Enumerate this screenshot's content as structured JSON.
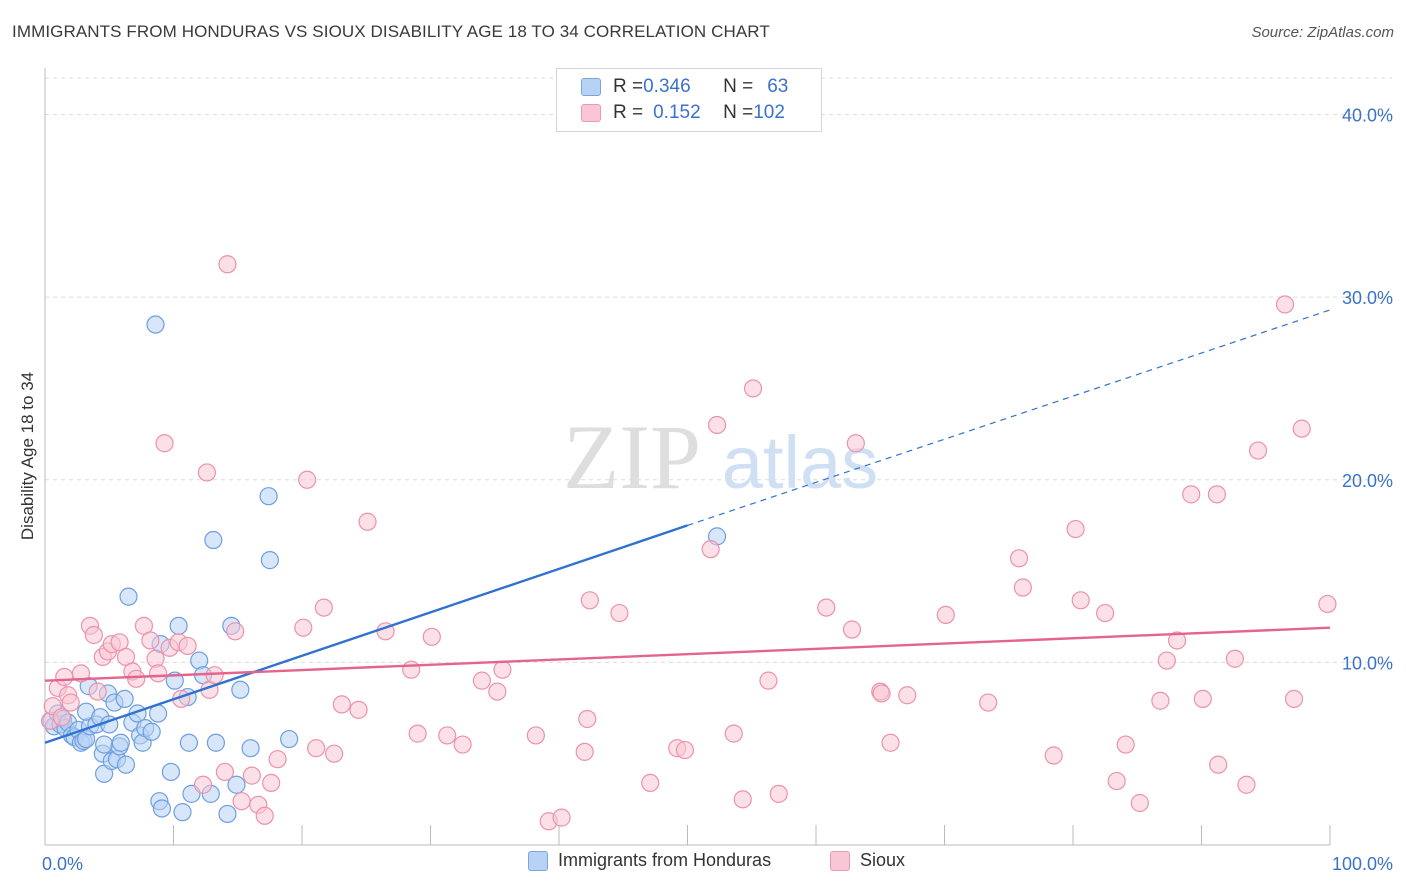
{
  "title": "IMMIGRANTS FROM HONDURAS VS SIOUX DISABILITY AGE 18 TO 34 CORRELATION CHART",
  "source": "Source: ZipAtlas.com",
  "watermark": {
    "zip": "ZIP",
    "atlas": "atlas"
  },
  "legend": {
    "rows": [
      {
        "r_label": "R = ",
        "r_value": "0.346",
        "n_label": "N = ",
        "n_value": "63",
        "color": "#b8d2f4",
        "border": "#7aa7e0"
      },
      {
        "r_label": "R = ",
        "r_value": "0.152",
        "n_label": "N = ",
        "n_value": "102",
        "color": "#f8c6d4",
        "border": "#ec9ab2"
      }
    ]
  },
  "bottom_legend": {
    "honduras": "Immigrants from Honduras",
    "sioux": "Sioux"
  },
  "colors": {
    "honduras_fill": "#b8d2f4",
    "honduras_stroke": "#6d9fe0",
    "honduras_line": "#2f72d0",
    "sioux_fill": "#f8c6d4",
    "sioux_stroke": "#ec92ad",
    "sioux_line": "#e4648d",
    "tick_label": "#3b72c9",
    "grid": "#dcdcdc"
  },
  "chart_data": {
    "type": "scatter",
    "xlabel": "",
    "ylabel": "Disability Age 18 to 34",
    "xlim": [
      0,
      100
    ],
    "ylim": [
      0,
      42
    ],
    "x_ticks": [
      {
        "value": 0,
        "label": "0.0%"
      },
      {
        "value": 100,
        "label": "100.0%"
      }
    ],
    "y_ticks": [
      {
        "value": 10,
        "label": "10.0%"
      },
      {
        "value": 20,
        "label": "20.0%"
      },
      {
        "value": 30,
        "label": "30.0%"
      },
      {
        "value": 40,
        "label": "40.0%"
      }
    ],
    "grid": true,
    "series": [
      {
        "name": "Immigrants from Honduras",
        "color_key": "honduras",
        "trend": {
          "x0": 0,
          "y0": 5.6,
          "x1": 50,
          "y1": 17.5,
          "dash_x1": 100,
          "dash_y1": 29.3
        },
        "points": [
          [
            0.5,
            6.8
          ],
          [
            0.7,
            6.5
          ],
          [
            1.0,
            7.2
          ],
          [
            1.2,
            6.6
          ],
          [
            1.4,
            6.9
          ],
          [
            1.6,
            6.4
          ],
          [
            1.8,
            6.7
          ],
          [
            2.1,
            6.0
          ],
          [
            2.3,
            5.9
          ],
          [
            2.6,
            6.3
          ],
          [
            2.8,
            5.6
          ],
          [
            3.0,
            5.7
          ],
          [
            3.2,
            5.8
          ],
          [
            3.5,
            6.5
          ],
          [
            3.2,
            7.3
          ],
          [
            3.4,
            8.7
          ],
          [
            4.0,
            6.6
          ],
          [
            4.3,
            7.0
          ],
          [
            4.5,
            5.0
          ],
          [
            4.6,
            5.5
          ],
          [
            4.6,
            3.9
          ],
          [
            4.9,
            8.3
          ],
          [
            5.0,
            6.6
          ],
          [
            5.2,
            4.6
          ],
          [
            5.4,
            7.8
          ],
          [
            5.6,
            4.7
          ],
          [
            5.8,
            5.4
          ],
          [
            5.9,
            5.6
          ],
          [
            6.2,
            8.0
          ],
          [
            6.3,
            4.4
          ],
          [
            6.5,
            13.6
          ],
          [
            6.8,
            6.7
          ],
          [
            7.2,
            7.2
          ],
          [
            7.4,
            6.0
          ],
          [
            7.6,
            5.6
          ],
          [
            7.8,
            6.4
          ],
          [
            8.3,
            6.2
          ],
          [
            8.6,
            28.5
          ],
          [
            8.8,
            7.2
          ],
          [
            8.9,
            2.4
          ],
          [
            9.1,
            2.0
          ],
          [
            9.8,
            4.0
          ],
          [
            10.1,
            9.0
          ],
          [
            10.4,
            12.0
          ],
          [
            10.7,
            1.8
          ],
          [
            11.1,
            8.1
          ],
          [
            11.2,
            5.6
          ],
          [
            11.4,
            2.8
          ],
          [
            12.0,
            10.1
          ],
          [
            12.3,
            9.3
          ],
          [
            12.9,
            2.8
          ],
          [
            13.1,
            16.7
          ],
          [
            13.3,
            5.6
          ],
          [
            14.2,
            1.7
          ],
          [
            14.5,
            12.0
          ],
          [
            14.9,
            3.3
          ],
          [
            15.2,
            8.5
          ],
          [
            16.0,
            5.3
          ],
          [
            17.4,
            19.1
          ],
          [
            17.5,
            15.6
          ],
          [
            19.0,
            5.8
          ],
          [
            9.0,
            11.0
          ],
          [
            52.3,
            16.9
          ]
        ]
      },
      {
        "name": "Sioux",
        "color_key": "sioux",
        "trend": {
          "x0": 0,
          "y0": 9.0,
          "x1": 100,
          "y1": 11.9
        },
        "points": [
          [
            0.4,
            6.8
          ],
          [
            0.6,
            7.6
          ],
          [
            1.0,
            8.6
          ],
          [
            1.3,
            7.0
          ],
          [
            1.5,
            9.2
          ],
          [
            1.8,
            8.2
          ],
          [
            2.0,
            7.8
          ],
          [
            2.8,
            9.4
          ],
          [
            3.5,
            12.0
          ],
          [
            3.8,
            11.5
          ],
          [
            4.1,
            8.4
          ],
          [
            4.5,
            10.3
          ],
          [
            4.9,
            10.6
          ],
          [
            5.2,
            11.0
          ],
          [
            5.8,
            11.1
          ],
          [
            6.3,
            10.3
          ],
          [
            6.8,
            9.5
          ],
          [
            7.1,
            9.1
          ],
          [
            7.7,
            12.0
          ],
          [
            8.2,
            11.2
          ],
          [
            8.6,
            10.2
          ],
          [
            8.8,
            9.4
          ],
          [
            9.3,
            22.0
          ],
          [
            9.7,
            10.8
          ],
          [
            10.4,
            11.1
          ],
          [
            10.6,
            8.0
          ],
          [
            11.1,
            10.9
          ],
          [
            12.3,
            3.3
          ],
          [
            12.6,
            20.4
          ],
          [
            12.8,
            8.5
          ],
          [
            13.2,
            9.3
          ],
          [
            14.0,
            4.0
          ],
          [
            14.2,
            31.8
          ],
          [
            14.8,
            11.7
          ],
          [
            15.3,
            2.4
          ],
          [
            16.1,
            3.8
          ],
          [
            16.6,
            2.2
          ],
          [
            17.1,
            1.6
          ],
          [
            17.6,
            3.4
          ],
          [
            18.1,
            4.7
          ],
          [
            20.1,
            11.9
          ],
          [
            20.4,
            20.0
          ],
          [
            21.1,
            5.3
          ],
          [
            21.7,
            13.0
          ],
          [
            22.5,
            5.0
          ],
          [
            23.1,
            7.7
          ],
          [
            24.4,
            7.4
          ],
          [
            25.1,
            17.7
          ],
          [
            26.5,
            11.7
          ],
          [
            28.5,
            9.6
          ],
          [
            29.0,
            6.1
          ],
          [
            30.1,
            11.4
          ],
          [
            31.3,
            6.0
          ],
          [
            32.5,
            5.5
          ],
          [
            34.0,
            9.0
          ],
          [
            35.2,
            8.4
          ],
          [
            35.6,
            9.6
          ],
          [
            38.2,
            6.0
          ],
          [
            39.2,
            1.3
          ],
          [
            40.2,
            1.5
          ],
          [
            42.0,
            5.1
          ],
          [
            42.4,
            13.4
          ],
          [
            42.2,
            6.9
          ],
          [
            44.7,
            12.7
          ],
          [
            47.1,
            3.4
          ],
          [
            49.2,
            5.3
          ],
          [
            49.8,
            5.2
          ],
          [
            51.8,
            16.2
          ],
          [
            52.3,
            23.0
          ],
          [
            53.6,
            6.1
          ],
          [
            54.3,
            2.5
          ],
          [
            55.1,
            25.0
          ],
          [
            56.3,
            9.0
          ],
          [
            57.1,
            2.8
          ],
          [
            60.8,
            13.0
          ],
          [
            62.8,
            11.8
          ],
          [
            63.1,
            22.0
          ],
          [
            65.0,
            8.4
          ],
          [
            65.8,
            5.6
          ],
          [
            67.1,
            8.2
          ],
          [
            70.1,
            12.6
          ],
          [
            73.4,
            7.8
          ],
          [
            75.8,
            15.7
          ],
          [
            76.1,
            14.1
          ],
          [
            78.5,
            4.9
          ],
          [
            80.2,
            17.3
          ],
          [
            80.6,
            13.4
          ],
          [
            82.5,
            12.7
          ],
          [
            83.4,
            3.5
          ],
          [
            84.1,
            5.5
          ],
          [
            85.2,
            2.3
          ],
          [
            86.8,
            7.9
          ],
          [
            87.3,
            10.1
          ],
          [
            88.1,
            11.2
          ],
          [
            89.2,
            19.2
          ],
          [
            91.2,
            19.2
          ],
          [
            90.1,
            8.0
          ],
          [
            91.3,
            4.4
          ],
          [
            92.6,
            10.2
          ],
          [
            93.5,
            3.3
          ],
          [
            94.4,
            21.6
          ],
          [
            96.5,
            29.6
          ],
          [
            97.2,
            8.0
          ],
          [
            97.8,
            22.8
          ],
          [
            99.8,
            13.2
          ],
          [
            65.1,
            8.3
          ]
        ]
      }
    ]
  }
}
